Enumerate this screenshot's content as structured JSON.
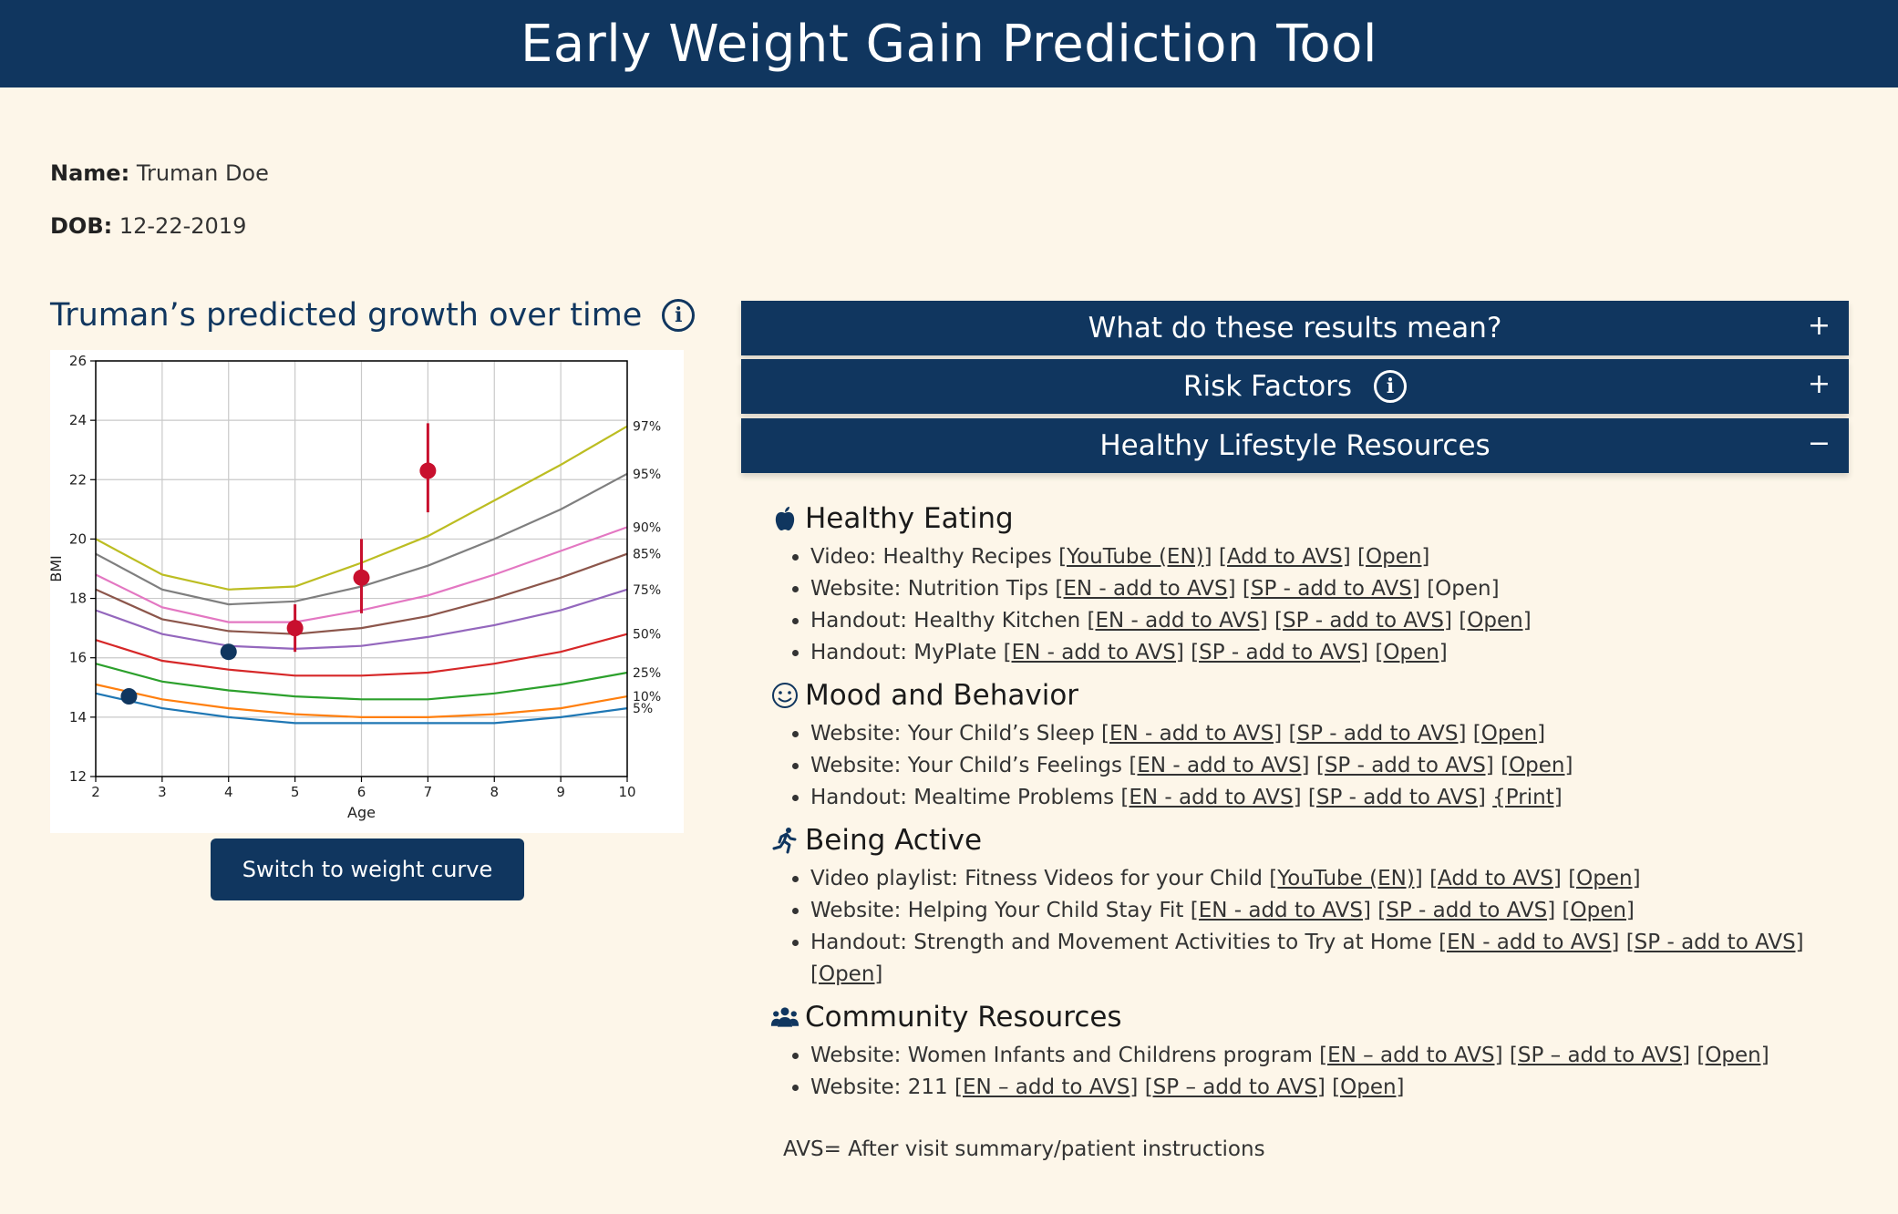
{
  "header": {
    "title": "Early Weight Gain Prediction Tool"
  },
  "patient": {
    "name_label": "Name:",
    "name": "Truman Doe",
    "dob_label": "DOB:",
    "dob": "12-22-2019"
  },
  "chart_panel": {
    "title": "Truman’s predicted growth over time",
    "switch_button": "Switch to weight curve"
  },
  "chart_data": {
    "type": "line",
    "xlabel": "Age",
    "ylabel": "BMI",
    "xlim": [
      2,
      10
    ],
    "ylim": [
      12,
      26
    ],
    "xticks": [
      2,
      3,
      4,
      5,
      6,
      7,
      8,
      9,
      10
    ],
    "yticks": [
      12,
      14,
      16,
      18,
      20,
      22,
      24,
      26
    ],
    "grid": true,
    "percentile_curves": [
      {
        "label": "97%",
        "color": "#bcbd22",
        "x": [
          2,
          3,
          4,
          5,
          6,
          7,
          8,
          9,
          10
        ],
        "y": [
          20.0,
          18.8,
          18.3,
          18.4,
          19.2,
          20.1,
          21.3,
          22.5,
          23.8
        ]
      },
      {
        "label": "95%",
        "color": "#7f7f7f",
        "x": [
          2,
          3,
          4,
          5,
          6,
          7,
          8,
          9,
          10
        ],
        "y": [
          19.5,
          18.3,
          17.8,
          17.9,
          18.4,
          19.1,
          20.0,
          21.0,
          22.2
        ]
      },
      {
        "label": "90%",
        "color": "#e377c2",
        "x": [
          2,
          3,
          4,
          5,
          6,
          7,
          8,
          9,
          10
        ],
        "y": [
          18.8,
          17.7,
          17.2,
          17.2,
          17.6,
          18.1,
          18.8,
          19.6,
          20.4
        ]
      },
      {
        "label": "85%",
        "color": "#8c564b",
        "x": [
          2,
          3,
          4,
          5,
          6,
          7,
          8,
          9,
          10
        ],
        "y": [
          18.3,
          17.3,
          16.9,
          16.8,
          17.0,
          17.4,
          18.0,
          18.7,
          19.5
        ]
      },
      {
        "label": "75%",
        "color": "#9467bd",
        "x": [
          2,
          3,
          4,
          5,
          6,
          7,
          8,
          9,
          10
        ],
        "y": [
          17.6,
          16.8,
          16.4,
          16.3,
          16.4,
          16.7,
          17.1,
          17.6,
          18.3
        ]
      },
      {
        "label": "50%",
        "color": "#d62728",
        "x": [
          2,
          3,
          4,
          5,
          6,
          7,
          8,
          9,
          10
        ],
        "y": [
          16.6,
          15.9,
          15.6,
          15.4,
          15.4,
          15.5,
          15.8,
          16.2,
          16.8
        ]
      },
      {
        "label": "25%",
        "color": "#2ca02c",
        "x": [
          2,
          3,
          4,
          5,
          6,
          7,
          8,
          9,
          10
        ],
        "y": [
          15.8,
          15.2,
          14.9,
          14.7,
          14.6,
          14.6,
          14.8,
          15.1,
          15.5
        ]
      },
      {
        "label": "10%",
        "color": "#ff7f0e",
        "x": [
          2,
          3,
          4,
          5,
          6,
          7,
          8,
          9,
          10
        ],
        "y": [
          15.1,
          14.6,
          14.3,
          14.1,
          14.0,
          14.0,
          14.1,
          14.3,
          14.7
        ]
      },
      {
        "label": "5%",
        "color": "#1f77b4",
        "x": [
          2,
          3,
          4,
          5,
          6,
          7,
          8,
          9,
          10
        ],
        "y": [
          14.8,
          14.3,
          14.0,
          13.8,
          13.8,
          13.8,
          13.8,
          14.0,
          14.3
        ]
      }
    ],
    "observed_points": {
      "color": "#10365f",
      "points": [
        {
          "x": 2.5,
          "y": 14.7
        },
        {
          "x": 4,
          "y": 16.2
        }
      ]
    },
    "predicted_points": {
      "color": "#c8102e",
      "points": [
        {
          "x": 5,
          "y": 17.0,
          "low": 16.2,
          "high": 17.8
        },
        {
          "x": 6,
          "y": 18.7,
          "low": 17.5,
          "high": 20.0
        },
        {
          "x": 7,
          "y": 22.3,
          "low": 20.9,
          "high": 23.9
        }
      ]
    }
  },
  "accordions": [
    {
      "title": "What do these results mean?",
      "toggle": "+"
    },
    {
      "title": "Risk Factors",
      "toggle": "+"
    },
    {
      "title": "Healthy Lifestyle Resources",
      "toggle": "−"
    }
  ],
  "resources": {
    "sections": [
      {
        "title": "Healthy Eating",
        "icon": "apple-icon",
        "items": [
          {
            "text": "Video: Healthy Recipes ",
            "links": [
              "[YouTube (EN)]",
              "[Add to AVS]",
              "[Open]"
            ]
          },
          {
            "text": "Website: Nutrition Tips ",
            "links": [
              "[EN - add to AVS]",
              "[SP - add to AVS]"
            ],
            "plain_links": [
              "[Open]"
            ]
          },
          {
            "text": "Handout: Healthy Kitchen ",
            "links": [
              "[EN - add to AVS]",
              "[SP - add to AVS]",
              "[Open]"
            ]
          },
          {
            "text": "Handout: MyPlate ",
            "links": [
              "[EN - add to AVS]",
              "[SP - add to AVS]",
              "[Open]"
            ]
          }
        ]
      },
      {
        "title": "Mood and Behavior",
        "icon": "smiley-icon",
        "items": [
          {
            "text": "Website: Your Child’s Sleep ",
            "links": [
              "[EN - add to AVS]",
              "[SP - add to AVS]",
              "[Open]"
            ]
          },
          {
            "text": "Website: Your Child’s Feelings ",
            "links": [
              "[EN - add to AVS]",
              "[SP - add to AVS]",
              "[Open]"
            ]
          },
          {
            "text": "Handout: Mealtime Problems ",
            "links": [
              "[EN - add to AVS]",
              "[SP - add to AVS]",
              "{Print]"
            ]
          }
        ]
      },
      {
        "title": "Being Active",
        "icon": "running-icon",
        "items": [
          {
            "text": "Video playlist: Fitness Videos for your Child ",
            "links": [
              "[YouTube (EN)]",
              "[Add to AVS]",
              "[Open]"
            ]
          },
          {
            "text": "Website: Helping Your Child Stay Fit ",
            "links": [
              "[EN - add to AVS]",
              "[SP - add to AVS]",
              "[Open]"
            ]
          },
          {
            "text": "Handout: Strength and Movement Activities to Try at Home ",
            "links": [
              "[EN - add to AVS]",
              "[SP - add to AVS]",
              "[Open]"
            ]
          }
        ]
      },
      {
        "title": "Community Resources",
        "icon": "users-icon",
        "items": [
          {
            "text": "Website: Women Infants and Childrens program ",
            "links": [
              "[EN – add to AVS]",
              "[SP – add to AVS]",
              "[Open]"
            ]
          },
          {
            "text": "Website: 211 ",
            "links": [
              "[EN – add to AVS]",
              "[SP – add to AVS]",
              "[Open]"
            ]
          }
        ]
      }
    ],
    "avs_note": "AVS= After visit summary/patient instructions"
  }
}
